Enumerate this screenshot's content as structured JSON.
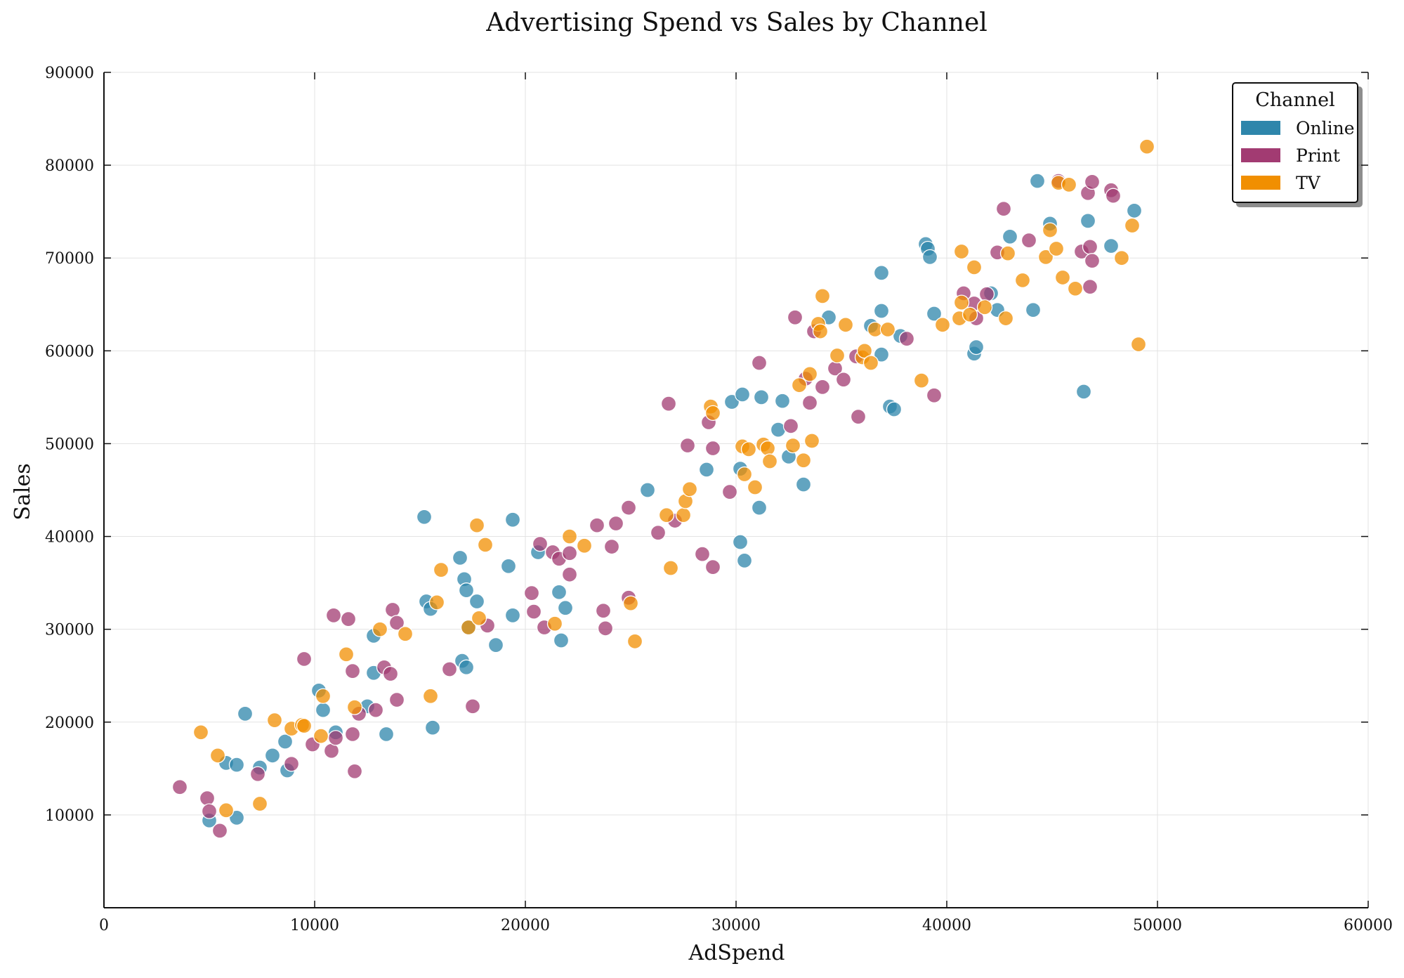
{
  "chart_data": {
    "type": "scatter",
    "title": "Advertising Spend vs Sales by Channel",
    "xlabel": "AdSpend",
    "ylabel": "Sales",
    "xlim": [
      0,
      60000
    ],
    "ylim": [
      0,
      90000
    ],
    "x_ticks": [
      0,
      10000,
      20000,
      30000,
      40000,
      50000,
      60000
    ],
    "y_ticks": [
      10000,
      20000,
      30000,
      40000,
      50000,
      60000,
      70000,
      80000,
      90000
    ],
    "x_tick_labels": [
      "0",
      "10000",
      "20000",
      "30000",
      "40000",
      "50000",
      "60000"
    ],
    "y_tick_labels": [
      "10000",
      "20000",
      "30000",
      "40000",
      "50000",
      "60000",
      "70000",
      "80000",
      "90000"
    ],
    "grid": true,
    "legend": {
      "title": "Channel",
      "position": "top-right"
    },
    "series": [
      {
        "name": "Online",
        "color": "#2e86ab",
        "points": [
          [
            5000,
            9400
          ],
          [
            5800,
            15600
          ],
          [
            6300,
            9700
          ],
          [
            6300,
            15400
          ],
          [
            6700,
            20900
          ],
          [
            7400,
            15100
          ],
          [
            8000,
            16400
          ],
          [
            8600,
            17900
          ],
          [
            8700,
            14800
          ],
          [
            10200,
            23400
          ],
          [
            10400,
            21300
          ],
          [
            11000,
            18900
          ],
          [
            12500,
            21700
          ],
          [
            12800,
            29300
          ],
          [
            12800,
            25300
          ],
          [
            13400,
            18700
          ],
          [
            15200,
            42100
          ],
          [
            15300,
            33000
          ],
          [
            15500,
            32200
          ],
          [
            15600,
            19400
          ],
          [
            16900,
            37700
          ],
          [
            17000,
            26600
          ],
          [
            17100,
            35400
          ],
          [
            17200,
            34200
          ],
          [
            17300,
            30200
          ],
          [
            17200,
            25900
          ],
          [
            17700,
            33000
          ],
          [
            18600,
            28300
          ],
          [
            19200,
            36800
          ],
          [
            19400,
            31500
          ],
          [
            19400,
            41800
          ],
          [
            20600,
            38300
          ],
          [
            21600,
            34000
          ],
          [
            21700,
            28800
          ],
          [
            21900,
            32300
          ],
          [
            25800,
            45000
          ],
          [
            28600,
            47200
          ],
          [
            29800,
            54500
          ],
          [
            30200,
            47300
          ],
          [
            30300,
            55300
          ],
          [
            30200,
            39400
          ],
          [
            30400,
            37400
          ],
          [
            31100,
            43100
          ],
          [
            31200,
            55000
          ],
          [
            32000,
            51500
          ],
          [
            32200,
            54600
          ],
          [
            32500,
            48600
          ],
          [
            33200,
            45600
          ],
          [
            34400,
            63600
          ],
          [
            36400,
            62700
          ],
          [
            36900,
            68400
          ],
          [
            36900,
            59600
          ],
          [
            36900,
            64300
          ],
          [
            37300,
            54000
          ],
          [
            37500,
            53700
          ],
          [
            37800,
            61600
          ],
          [
            39000,
            71500
          ],
          [
            39100,
            71000
          ],
          [
            39200,
            70100
          ],
          [
            39400,
            64000
          ],
          [
            41300,
            59700
          ],
          [
            41400,
            60400
          ],
          [
            42100,
            66200
          ],
          [
            42400,
            64400
          ],
          [
            43000,
            72300
          ],
          [
            44100,
            64400
          ],
          [
            44300,
            78300
          ],
          [
            44900,
            73700
          ],
          [
            46500,
            55600
          ],
          [
            46700,
            74000
          ],
          [
            47800,
            71300
          ],
          [
            48900,
            75100
          ]
        ]
      },
      {
        "name": "Print",
        "color": "#a23b72",
        "points": [
          [
            3600,
            13000
          ],
          [
            4900,
            11800
          ],
          [
            5000,
            10400
          ],
          [
            5500,
            8300
          ],
          [
            7300,
            14400
          ],
          [
            8900,
            15500
          ],
          [
            9500,
            26800
          ],
          [
            9900,
            17600
          ],
          [
            10800,
            16900
          ],
          [
            10900,
            31500
          ],
          [
            11000,
            18300
          ],
          [
            11600,
            31100
          ],
          [
            11800,
            25500
          ],
          [
            11800,
            18700
          ],
          [
            11900,
            14700
          ],
          [
            12100,
            20900
          ],
          [
            12900,
            21300
          ],
          [
            13300,
            25900
          ],
          [
            13600,
            25200
          ],
          [
            13700,
            32100
          ],
          [
            13900,
            22400
          ],
          [
            13900,
            30700
          ],
          [
            16400,
            25700
          ],
          [
            17500,
            21700
          ],
          [
            18200,
            30400
          ],
          [
            20300,
            33900
          ],
          [
            20400,
            31900
          ],
          [
            20700,
            39200
          ],
          [
            20900,
            30200
          ],
          [
            21300,
            38300
          ],
          [
            21600,
            37600
          ],
          [
            22100,
            38200
          ],
          [
            22100,
            35900
          ],
          [
            23400,
            41200
          ],
          [
            23700,
            32000
          ],
          [
            23800,
            30100
          ],
          [
            24100,
            38900
          ],
          [
            24300,
            41400
          ],
          [
            24900,
            43100
          ],
          [
            24900,
            33400
          ],
          [
            26300,
            40400
          ],
          [
            26800,
            54300
          ],
          [
            27100,
            41700
          ],
          [
            27700,
            49800
          ],
          [
            28700,
            52300
          ],
          [
            28900,
            49500
          ],
          [
            28900,
            36700
          ],
          [
            28400,
            38100
          ],
          [
            29700,
            44800
          ],
          [
            31100,
            58700
          ],
          [
            32600,
            51900
          ],
          [
            32800,
            63600
          ],
          [
            33300,
            57000
          ],
          [
            33500,
            54400
          ],
          [
            33700,
            62100
          ],
          [
            34100,
            56100
          ],
          [
            34700,
            58100
          ],
          [
            35100,
            56900
          ],
          [
            35700,
            59400
          ],
          [
            35800,
            52900
          ],
          [
            38100,
            61300
          ],
          [
            39400,
            55200
          ],
          [
            40800,
            66200
          ],
          [
            41300,
            65100
          ],
          [
            41400,
            63500
          ],
          [
            41900,
            66100
          ],
          [
            42400,
            70600
          ],
          [
            42700,
            75300
          ],
          [
            43900,
            71900
          ],
          [
            45300,
            78300
          ],
          [
            46400,
            70700
          ],
          [
            46700,
            77000
          ],
          [
            46800,
            71200
          ],
          [
            46900,
            69700
          ],
          [
            46800,
            66900
          ],
          [
            46900,
            78200
          ],
          [
            47800,
            77300
          ],
          [
            47900,
            76700
          ]
        ]
      },
      {
        "name": "TV",
        "color": "#f18f01",
        "points": [
          [
            4600,
            18900
          ],
          [
            5400,
            16400
          ],
          [
            5800,
            10500
          ],
          [
            7400,
            11200
          ],
          [
            8100,
            20200
          ],
          [
            8900,
            19300
          ],
          [
            9400,
            19700
          ],
          [
            9500,
            19600
          ],
          [
            10300,
            18500
          ],
          [
            10400,
            22800
          ],
          [
            11500,
            27300
          ],
          [
            11900,
            21600
          ],
          [
            13100,
            30000
          ],
          [
            14300,
            29500
          ],
          [
            15500,
            22800
          ],
          [
            15800,
            32900
          ],
          [
            16000,
            36400
          ],
          [
            17300,
            30200
          ],
          [
            17700,
            41200
          ],
          [
            17800,
            31200
          ],
          [
            18100,
            39100
          ],
          [
            21400,
            30600
          ],
          [
            22100,
            40000
          ],
          [
            22800,
            39000
          ],
          [
            25000,
            32800
          ],
          [
            25200,
            28700
          ],
          [
            26700,
            42300
          ],
          [
            26900,
            36600
          ],
          [
            27500,
            42300
          ],
          [
            27600,
            43800
          ],
          [
            27800,
            45100
          ],
          [
            28800,
            54000
          ],
          [
            28900,
            53300
          ],
          [
            30300,
            49700
          ],
          [
            30400,
            46700
          ],
          [
            30600,
            49400
          ],
          [
            30900,
            45300
          ],
          [
            31300,
            49900
          ],
          [
            31500,
            49500
          ],
          [
            31600,
            48100
          ],
          [
            32700,
            49800
          ],
          [
            33000,
            56300
          ],
          [
            33200,
            48200
          ],
          [
            33500,
            57500
          ],
          [
            33600,
            50300
          ],
          [
            33900,
            62900
          ],
          [
            34000,
            62100
          ],
          [
            34100,
            65900
          ],
          [
            34800,
            59500
          ],
          [
            35200,
            62800
          ],
          [
            36000,
            59300
          ],
          [
            36100,
            60000
          ],
          [
            36400,
            58700
          ],
          [
            36600,
            62300
          ],
          [
            37200,
            62300
          ],
          [
            38800,
            56800
          ],
          [
            39800,
            62800
          ],
          [
            40600,
            63500
          ],
          [
            40700,
            65200
          ],
          [
            40700,
            70700
          ],
          [
            41100,
            63900
          ],
          [
            41300,
            69000
          ],
          [
            41800,
            64700
          ],
          [
            42800,
            63500
          ],
          [
            42900,
            70500
          ],
          [
            43600,
            67600
          ],
          [
            44700,
            70100
          ],
          [
            44900,
            73000
          ],
          [
            45200,
            71000
          ],
          [
            45300,
            78100
          ],
          [
            45800,
            77900
          ],
          [
            45500,
            67900
          ],
          [
            46100,
            66700
          ],
          [
            48300,
            70000
          ],
          [
            48800,
            73500
          ],
          [
            49100,
            60700
          ],
          [
            49500,
            82000
          ]
        ]
      }
    ]
  }
}
